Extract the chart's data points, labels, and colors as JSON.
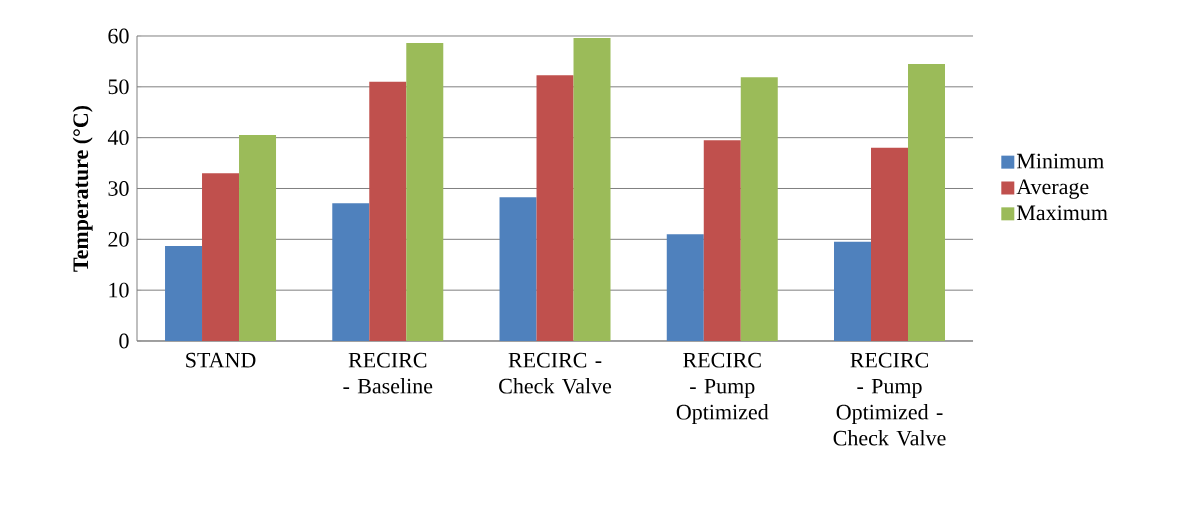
{
  "chart_data": {
    "type": "bar",
    "ylabel": "Temperature (°C)",
    "categories": [
      "STAND",
      "RECIRC - Baseline",
      "RECIRC - Check Valve",
      "RECIRC - Pump Optimized",
      "RECIRC - Pump Optimized - Check Valve"
    ],
    "series": [
      {
        "name": "Minimum",
        "color": "#4f81bd",
        "values": [
          18.7,
          27.1,
          28.3,
          21.0,
          19.5
        ]
      },
      {
        "name": "Average",
        "color": "#c0504d",
        "values": [
          33.0,
          51.0,
          52.3,
          39.5,
          38.0
        ]
      },
      {
        "name": "Maximum",
        "color": "#9bbb59",
        "values": [
          40.5,
          58.6,
          59.6,
          51.9,
          54.5
        ]
      }
    ],
    "ylim": [
      0,
      60
    ],
    "yticks": [
      0,
      10,
      20,
      30,
      40,
      50,
      60
    ],
    "grid": "y",
    "legend": "right"
  }
}
